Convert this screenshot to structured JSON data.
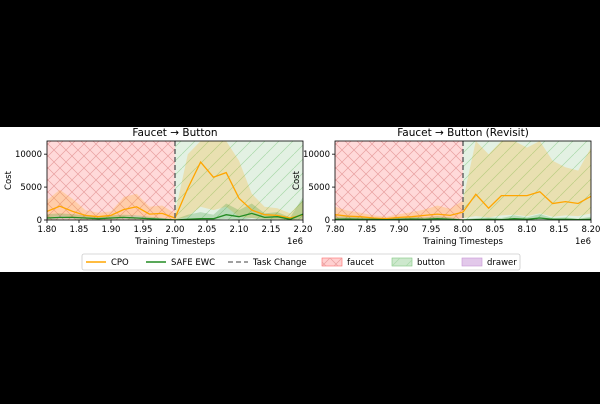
{
  "colors": {
    "background": "#000000",
    "figure": "#ffffff",
    "cpo": "#ffa500",
    "safe_ewc": "#228b22",
    "task_change": "#808080",
    "faucet": "#ff6b6b",
    "button": "#7fc97f",
    "drawer": "#c896d4"
  },
  "legend": {
    "placement": "bottom-center",
    "items": [
      {
        "label": "CPO",
        "kind": "line",
        "color": "#ffa500"
      },
      {
        "label": "SAFE EWC",
        "kind": "line",
        "color": "#228b22"
      },
      {
        "label": "Task Change",
        "kind": "dashed",
        "color": "#808080"
      },
      {
        "label": "faucet",
        "kind": "patch-hatch",
        "color": "#ff6b6b"
      },
      {
        "label": "button",
        "kind": "patch-diag",
        "color": "#7fc97f"
      },
      {
        "label": "drawer",
        "kind": "patch",
        "color": "#c896d4"
      }
    ]
  },
  "chart_data": [
    {
      "type": "line",
      "title": "Faucet → Button",
      "xlabel": "Training Timesteps",
      "ylabel": "Cost",
      "x_offset_label": "1e6",
      "xlim": [
        1.8,
        2.2
      ],
      "ylim": [
        0,
        12000
      ],
      "xticks": [
        "1.80",
        "1.85",
        "1.90",
        "1.95",
        "2.00",
        "2.05",
        "2.10",
        "2.15",
        "2.20"
      ],
      "yticks": [
        "0",
        "5000",
        "10000"
      ],
      "task_change": 2.0,
      "regions": [
        {
          "name": "faucet",
          "x": [
            1.8,
            2.0
          ]
        },
        {
          "name": "button",
          "x": [
            2.0,
            2.2
          ]
        }
      ],
      "x": [
        1.8,
        1.82,
        1.84,
        1.86,
        1.88,
        1.9,
        1.92,
        1.94,
        1.96,
        1.98,
        2.0,
        2.02,
        2.04,
        2.06,
        2.08,
        2.1,
        2.12,
        2.14,
        2.16,
        2.18,
        2.2
      ],
      "series": [
        {
          "name": "CPO",
          "values": [
            1300,
            2100,
            1300,
            700,
            500,
            700,
            1600,
            2000,
            900,
            1000,
            300,
            4800,
            8800,
            6500,
            7200,
            3300,
            1500,
            800,
            700,
            300,
            800
          ],
          "lower": [
            300,
            700,
            400,
            200,
            150,
            200,
            500,
            700,
            300,
            300,
            0,
            500,
            2000,
            1500,
            2000,
            500,
            300,
            200,
            100,
            50,
            100
          ],
          "upper": [
            3000,
            4600,
            3200,
            1500,
            1100,
            1300,
            3500,
            4000,
            2000,
            2200,
            1000,
            10000,
            12000,
            12000,
            12000,
            9000,
            4000,
            2000,
            1800,
            1000,
            3000
          ]
        },
        {
          "name": "SAFE EWC",
          "values": [
            300,
            400,
            400,
            300,
            200,
            300,
            400,
            300,
            200,
            100,
            0,
            100,
            200,
            200,
            800,
            500,
            1000,
            400,
            500,
            100,
            900
          ],
          "lower": [
            0,
            100,
            100,
            0,
            0,
            0,
            100,
            0,
            0,
            0,
            0,
            0,
            0,
            0,
            200,
            0,
            300,
            0,
            100,
            0,
            200
          ],
          "upper": [
            900,
            1000,
            900,
            700,
            500,
            700,
            800,
            700,
            500,
            300,
            100,
            800,
            1200,
            800,
            2500,
            1500,
            2500,
            1000,
            1200,
            400,
            3500
          ]
        }
      ]
    },
    {
      "type": "line",
      "title": "Faucet → Button (Revisit)",
      "xlabel": "Training Timesteps",
      "ylabel": "Cost",
      "x_offset_label": "1e6",
      "xlim": [
        7.8,
        8.2
      ],
      "ylim": [
        0,
        12000
      ],
      "xticks": [
        "7.80",
        "7.85",
        "7.90",
        "7.95",
        "8.00",
        "8.05",
        "8.10",
        "8.15",
        "8.20"
      ],
      "yticks": [
        "0",
        "5000",
        "10000"
      ],
      "task_change": 8.0,
      "regions": [
        {
          "name": "faucet",
          "x": [
            7.8,
            8.0
          ]
        },
        {
          "name": "button",
          "x": [
            8.0,
            8.2
          ]
        }
      ],
      "x": [
        7.8,
        7.82,
        7.84,
        7.86,
        7.88,
        7.9,
        7.92,
        7.94,
        7.96,
        7.98,
        8.0,
        8.02,
        8.04,
        8.06,
        8.08,
        8.1,
        8.12,
        8.14,
        8.16,
        8.18,
        8.2
      ],
      "series": [
        {
          "name": "CPO",
          "values": [
            800,
            600,
            500,
            300,
            200,
            400,
            500,
            700,
            900,
            700,
            1200,
            3900,
            1800,
            3700,
            3700,
            3700,
            4300,
            2500,
            2800,
            2500,
            3600
          ],
          "lower": [
            200,
            150,
            100,
            50,
            50,
            100,
            150,
            200,
            300,
            200,
            300,
            600,
            400,
            700,
            800,
            600,
            1000,
            500,
            700,
            600,
            1000
          ],
          "upper": [
            2000,
            1400,
            1100,
            700,
            500,
            900,
            1200,
            1600,
            2200,
            1700,
            3000,
            12000,
            10000,
            12000,
            12000,
            11000,
            12000,
            9000,
            8000,
            7500,
            11000
          ]
        },
        {
          "name": "SAFE EWC",
          "values": [
            100,
            150,
            100,
            100,
            50,
            100,
            150,
            100,
            200,
            100,
            0,
            50,
            100,
            50,
            200,
            100,
            300,
            100,
            100,
            50,
            100
          ],
          "lower": [
            0,
            0,
            0,
            0,
            0,
            0,
            0,
            0,
            0,
            0,
            0,
            0,
            0,
            0,
            0,
            0,
            0,
            0,
            0,
            0,
            0
          ],
          "upper": [
            500,
            600,
            400,
            300,
            300,
            400,
            500,
            400,
            600,
            400,
            100,
            300,
            400,
            300,
            700,
            400,
            900,
            300,
            400,
            200,
            500
          ]
        }
      ]
    }
  ]
}
